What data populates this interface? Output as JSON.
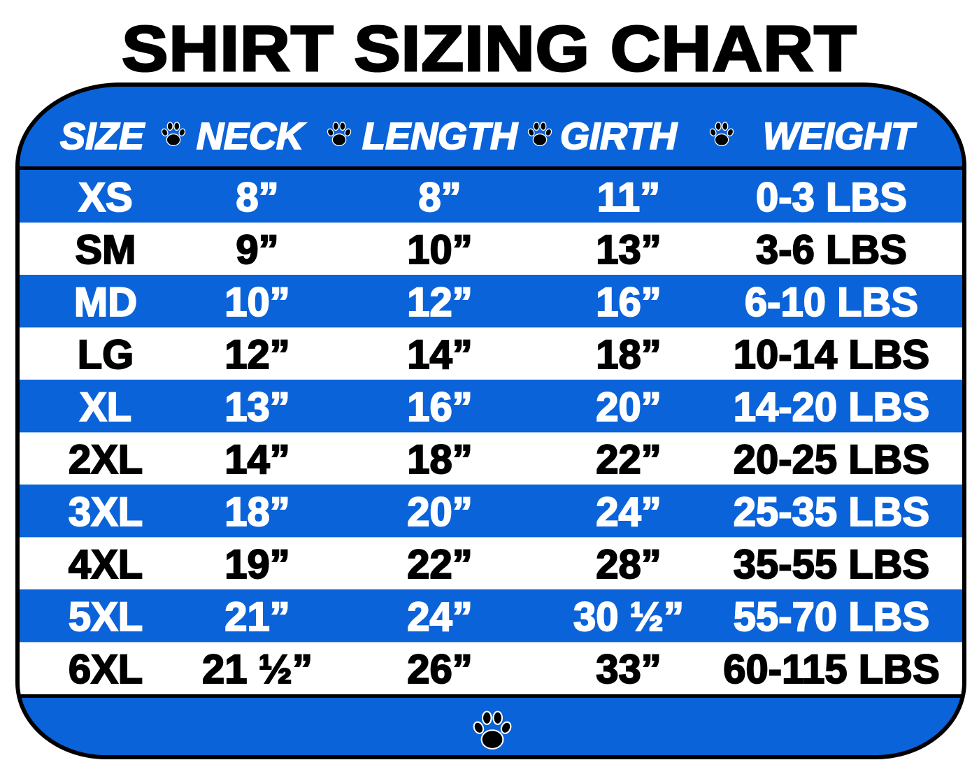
{
  "title": "SHIRT SIZING CHART",
  "colors": {
    "brand_blue": "#0b63d9",
    "border": "#000000",
    "stripe_white": "#ffffff"
  },
  "icons": {
    "separator": "paw-print-icon",
    "footer": "paw-print-icon"
  },
  "columns": [
    "SIZE",
    "NECK",
    "LENGTH",
    "GIRTH",
    "WEIGHT"
  ],
  "rows": [
    {
      "size": "XS",
      "neck": "8”",
      "length": "8”",
      "girth": "11”",
      "weight": "0-3 LBS"
    },
    {
      "size": "SM",
      "neck": "9”",
      "length": "10”",
      "girth": "13”",
      "weight": "3-6 LBS"
    },
    {
      "size": "MD",
      "neck": "10”",
      "length": "12”",
      "girth": "16”",
      "weight": "6-10 LBS"
    },
    {
      "size": "LG",
      "neck": "12”",
      "length": "14”",
      "girth": "18”",
      "weight": "10-14 LBS"
    },
    {
      "size": "XL",
      "neck": "13”",
      "length": "16”",
      "girth": "20”",
      "weight": "14-20 LBS"
    },
    {
      "size": "2XL",
      "neck": "14”",
      "length": "18”",
      "girth": "22”",
      "weight": "20-25 LBS"
    },
    {
      "size": "3XL",
      "neck": "18”",
      "length": "20”",
      "girth": "24”",
      "weight": "25-35 LBS"
    },
    {
      "size": "4XL",
      "neck": "19”",
      "length": "22”",
      "girth": "28”",
      "weight": "35-55 LBS"
    },
    {
      "size": "5XL",
      "neck": "21”",
      "length": "24”",
      "girth": "30 ½”",
      "weight": "55-70 LBS"
    },
    {
      "size": "6XL",
      "neck": "21 ½”",
      "length": "26”",
      "girth": "33”",
      "weight": "60-115 LBS"
    }
  ]
}
